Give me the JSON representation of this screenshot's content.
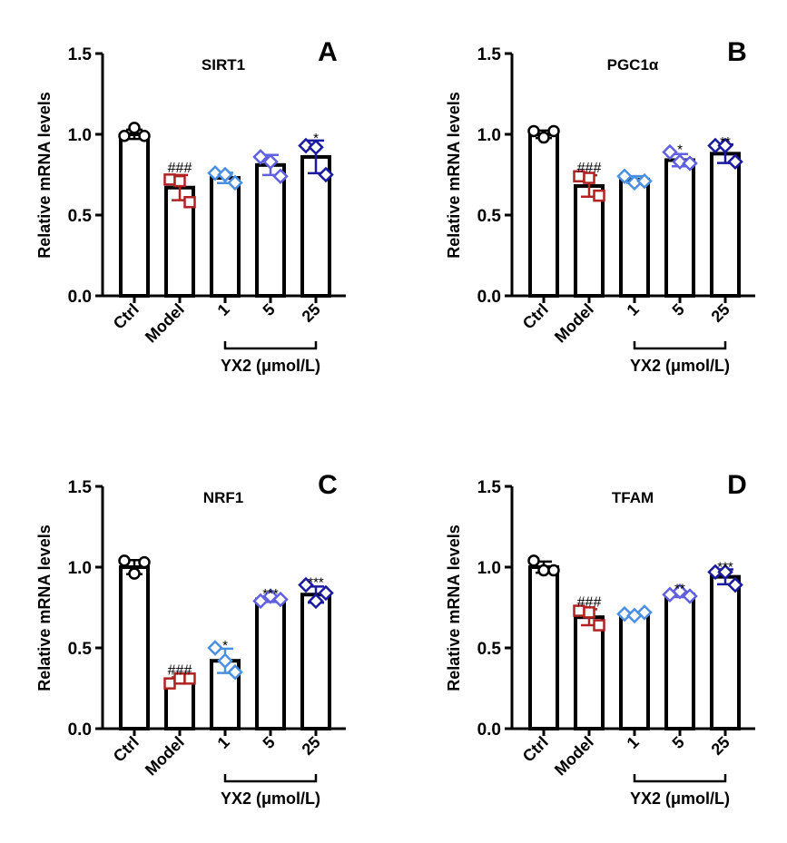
{
  "chart_data": [
    {
      "type": "bar",
      "panel": "A",
      "title": "SIRT1",
      "ylabel": "Relative mRNA levels",
      "ylim": [
        0,
        1.5
      ],
      "yticks": [
        "0.0",
        "0.5",
        "1.0",
        "1.5"
      ],
      "categories": [
        "Ctrl",
        "Model",
        "1",
        "5",
        "25"
      ],
      "group_label": "YX2 (μmol/L)",
      "values": [
        1.0,
        0.67,
        0.73,
        0.81,
        0.86
      ],
      "points": [
        [
          0.99,
          1.04,
          0.99
        ],
        [
          0.72,
          0.71,
          0.58
        ],
        [
          0.76,
          0.75,
          0.7
        ],
        [
          0.86,
          0.83,
          0.74
        ],
        [
          0.93,
          0.92,
          0.75
        ]
      ],
      "significance": [
        "",
        "###",
        "",
        "",
        "*"
      ]
    },
    {
      "type": "bar",
      "panel": "B",
      "title": "PGC1α",
      "ylabel": "Relative mRNA levels",
      "ylim": [
        0,
        1.5
      ],
      "yticks": [
        "0.0",
        "0.5",
        "1.0",
        "1.5"
      ],
      "categories": [
        "Ctrl",
        "Model",
        "1",
        "5",
        "25"
      ],
      "group_label": "YX2 (μmol/L)",
      "values": [
        1.0,
        0.68,
        0.72,
        0.84,
        0.88
      ],
      "points": [
        [
          1.02,
          0.98,
          1.02
        ],
        [
          0.74,
          0.73,
          0.62
        ],
        [
          0.74,
          0.7,
          0.71
        ],
        [
          0.89,
          0.83,
          0.82
        ],
        [
          0.93,
          0.93,
          0.83
        ]
      ],
      "significance": [
        "",
        "###",
        "",
        "*",
        "**"
      ]
    },
    {
      "type": "bar",
      "panel": "C",
      "title": "NRF1",
      "ylabel": "Relative mRNA levels",
      "ylim": [
        0,
        1.5
      ],
      "yticks": [
        "0.0",
        "0.5",
        "1.0",
        "1.5"
      ],
      "categories": [
        "Ctrl",
        "Model",
        "1",
        "5",
        "25"
      ],
      "group_label": "YX2 (μmol/L)",
      "values": [
        1.0,
        0.3,
        0.42,
        0.8,
        0.83
      ],
      "points": [
        [
          1.04,
          0.96,
          1.03
        ],
        [
          0.28,
          0.31,
          0.31
        ],
        [
          0.5,
          0.42,
          0.35
        ],
        [
          0.79,
          0.82,
          0.8
        ],
        [
          0.89,
          0.79,
          0.84
        ]
      ],
      "significance": [
        "",
        "###",
        "*",
        "***",
        "***"
      ]
    },
    {
      "type": "bar",
      "panel": "D",
      "title": "TFAM",
      "ylabel": "Relative mRNA levels",
      "ylim": [
        0,
        1.5
      ],
      "yticks": [
        "0.0",
        "0.5",
        "1.0",
        "1.5"
      ],
      "categories": [
        "Ctrl",
        "Model",
        "1",
        "5",
        "25"
      ],
      "group_label": "YX2 (μmol/L)",
      "values": [
        1.0,
        0.69,
        0.71,
        0.83,
        0.94
      ],
      "points": [
        [
          1.04,
          0.98,
          0.98
        ],
        [
          0.73,
          0.72,
          0.64
        ],
        [
          0.71,
          0.7,
          0.72
        ],
        [
          0.83,
          0.85,
          0.82
        ],
        [
          0.97,
          0.97,
          0.89
        ]
      ],
      "significance": [
        "",
        "###",
        "",
        "**",
        "***"
      ]
    }
  ],
  "colors": [
    "#000000",
    "#b22222",
    "#4a90e2",
    "#6060e0",
    "#1a1aa0"
  ],
  "markers": [
    "circle",
    "square",
    "diamond",
    "diamond",
    "diamond"
  ]
}
